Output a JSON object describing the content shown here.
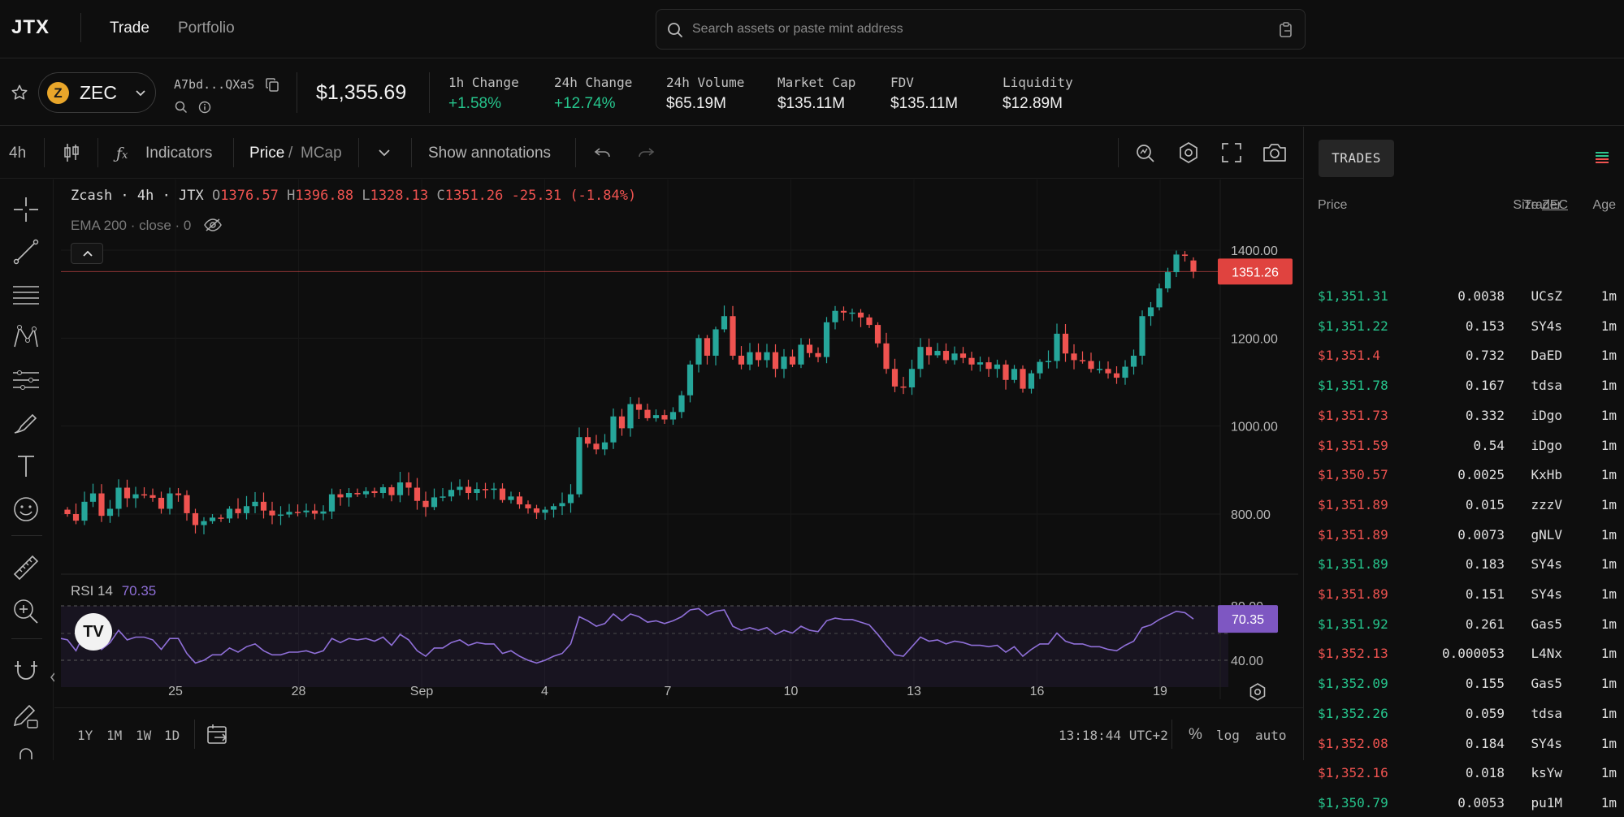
{
  "nav": {
    "logo": "JTX",
    "links": [
      "Trade",
      "Portfolio"
    ],
    "search_placeholder": "Search assets or paste mint address"
  },
  "token": {
    "symbol": "ZEC",
    "coin_glyph": "Z",
    "address": "A7bd...QXaS",
    "price": "$1,355.69",
    "stats": [
      {
        "label": "1h Change",
        "value": "+1.58%",
        "positive": true
      },
      {
        "label": "24h Change",
        "value": "+12.74%",
        "positive": true
      },
      {
        "label": "24h Volume",
        "value": "$65.19M",
        "positive": false
      },
      {
        "label": "Market Cap",
        "value": "$135.11M",
        "positive": false
      },
      {
        "label": "FDV",
        "value": "$135.11M",
        "positive": false
      },
      {
        "label": "Liquidity",
        "value": "$12.89M",
        "positive": false
      }
    ]
  },
  "toolbar": {
    "interval": "4h",
    "indicators": "Indicators",
    "price": "Price",
    "mcap": "MCap",
    "slash": "/",
    "annotations": "Show annotations"
  },
  "colors": {
    "up": "#26a69a",
    "down": "#ef5350",
    "rsi": "#9575cd",
    "price_line": "#ef5350"
  },
  "chart_data": {
    "type": "candlestick",
    "title": "Zcash · 4h · JTX",
    "ohlc": {
      "open": "1376.57",
      "high": "1396.88",
      "low": "1328.13",
      "close": "1351.26",
      "change": "-25.31",
      "change_pct": "(-1.84%)"
    },
    "ema_label": "EMA 200 · close · 0",
    "y_ticks": [
      "1400.00",
      "1200.00",
      "1000.00",
      "800.00"
    ],
    "y_range": [
      660,
      1430
    ],
    "x_ticks": [
      "25",
      "28",
      "Sep",
      "4",
      "7",
      "10",
      "13",
      "16",
      "19"
    ],
    "last_price": "1351.26",
    "closes": [
      800,
      785,
      828,
      847,
      796,
      812,
      860,
      836,
      845,
      843,
      837,
      812,
      847,
      843,
      802,
      775,
      784,
      792,
      790,
      812,
      802,
      818,
      828,
      808,
      797,
      799,
      805,
      804,
      808,
      801,
      806,
      845,
      838,
      848,
      845,
      852,
      848,
      861,
      843,
      872,
      860,
      830,
      816,
      838,
      840,
      855,
      862,
      848,
      857,
      855,
      858,
      832,
      840,
      822,
      813,
      803,
      810,
      818,
      825,
      845,
      975,
      960,
      947,
      963,
      1022,
      995,
      1050,
      1037,
      1018,
      1025,
      1015,
      1032,
      1070,
      1140,
      1200,
      1160,
      1220,
      1250,
      1160,
      1140,
      1168,
      1150,
      1168,
      1130,
      1158,
      1140,
      1185,
      1166,
      1157,
      1236,
      1262,
      1258,
      1258,
      1247,
      1230,
      1188,
      1130,
      1090,
      1088,
      1130,
      1180,
      1161,
      1171,
      1150,
      1165,
      1155,
      1140,
      1145,
      1130,
      1140,
      1105,
      1130,
      1085,
      1120,
      1146,
      1148,
      1210,
      1165,
      1150,
      1148,
      1130,
      1130,
      1120,
      1110,
      1135,
      1160,
      1250,
      1270,
      1313,
      1350,
      1390,
      1387,
      1351.26
    ],
    "rsi": {
      "label": "RSI 14",
      "value": "70.35",
      "ticks": [
        "80.00",
        "40.00"
      ],
      "range": [
        20,
        85
      ],
      "values": [
        55,
        47,
        60,
        64,
        48,
        53,
        62,
        55,
        57,
        57,
        55,
        48,
        56,
        56,
        45,
        38,
        40,
        44,
        44,
        49,
        46,
        50,
        52,
        47,
        44,
        44,
        46,
        46,
        47,
        45,
        47,
        56,
        53,
        56,
        55,
        56,
        54,
        57,
        51,
        59,
        55,
        47,
        43,
        49,
        49,
        53,
        55,
        51,
        53,
        52,
        52,
        45,
        47,
        43,
        40,
        38,
        40,
        43,
        45,
        52,
        72,
        69,
        65,
        67,
        74,
        69,
        74,
        72,
        68,
        69,
        67,
        69,
        72,
        77,
        78,
        73,
        76,
        77,
        65,
        62,
        64,
        62,
        64,
        59,
        62,
        60,
        65,
        62,
        61,
        69,
        71,
        70,
        70,
        68,
        66,
        59,
        51,
        44,
        43,
        50,
        57,
        54,
        55,
        52,
        54,
        53,
        51,
        51,
        50,
        51,
        46,
        50,
        43,
        48,
        52,
        52,
        60,
        54,
        52,
        52,
        50,
        50,
        48,
        47,
        51,
        54,
        64,
        66,
        70,
        73,
        76,
        75,
        70.35
      ]
    }
  },
  "chart_footer": {
    "ranges": [
      "1Y",
      "1M",
      "1W",
      "1D"
    ],
    "time": "13:18:44 UTC+2",
    "percent": "%",
    "log": "log",
    "auto": "auto"
  },
  "trades": {
    "tab": "TRADES",
    "headers": {
      "price": "Price",
      "size": "Size",
      "size_unit": "ZEC",
      "trader": "Trader",
      "age": "Age"
    },
    "rows": [
      {
        "price": "$1,351.31",
        "size": "0.0038",
        "trader": "UCsZ",
        "age": "1m",
        "side": "buy"
      },
      {
        "price": "$1,351.22",
        "size": "0.153",
        "trader": "SY4s",
        "age": "1m",
        "side": "buy"
      },
      {
        "price": "$1,351.4",
        "size": "0.732",
        "trader": "DaED",
        "age": "1m",
        "side": "sell"
      },
      {
        "price": "$1,351.78",
        "size": "0.167",
        "trader": "tdsa",
        "age": "1m",
        "side": "buy"
      },
      {
        "price": "$1,351.73",
        "size": "0.332",
        "trader": "iDgo",
        "age": "1m",
        "side": "sell"
      },
      {
        "price": "$1,351.59",
        "size": "0.54",
        "trader": "iDgo",
        "age": "1m",
        "side": "sell"
      },
      {
        "price": "$1,350.57",
        "size": "0.0025",
        "trader": "KxHb",
        "age": "1m",
        "side": "sell"
      },
      {
        "price": "$1,351.89",
        "size": "0.015",
        "trader": "zzzV",
        "age": "1m",
        "side": "sell"
      },
      {
        "price": "$1,351.89",
        "size": "0.0073",
        "trader": "gNLV",
        "age": "1m",
        "side": "sell"
      },
      {
        "price": "$1,351.89",
        "size": "0.183",
        "trader": "SY4s",
        "age": "1m",
        "side": "buy"
      },
      {
        "price": "$1,351.89",
        "size": "0.151",
        "trader": "SY4s",
        "age": "1m",
        "side": "sell"
      },
      {
        "price": "$1,351.92",
        "size": "0.261",
        "trader": "Gas5",
        "age": "1m",
        "side": "buy"
      },
      {
        "price": "$1,352.13",
        "size": "0.000053",
        "trader": "L4Nx",
        "age": "1m",
        "side": "sell"
      },
      {
        "price": "$1,352.09",
        "size": "0.155",
        "trader": "Gas5",
        "age": "1m",
        "side": "buy"
      },
      {
        "price": "$1,352.26",
        "size": "0.059",
        "trader": "tdsa",
        "age": "1m",
        "side": "buy"
      },
      {
        "price": "$1,352.08",
        "size": "0.184",
        "trader": "SY4s",
        "age": "1m",
        "side": "sell"
      },
      {
        "price": "$1,352.16",
        "size": "0.018",
        "trader": "ksYw",
        "age": "1m",
        "side": "sell"
      },
      {
        "price": "$1,350.79",
        "size": "0.0053",
        "trader": "pu1M",
        "age": "1m",
        "side": "buy"
      }
    ]
  }
}
